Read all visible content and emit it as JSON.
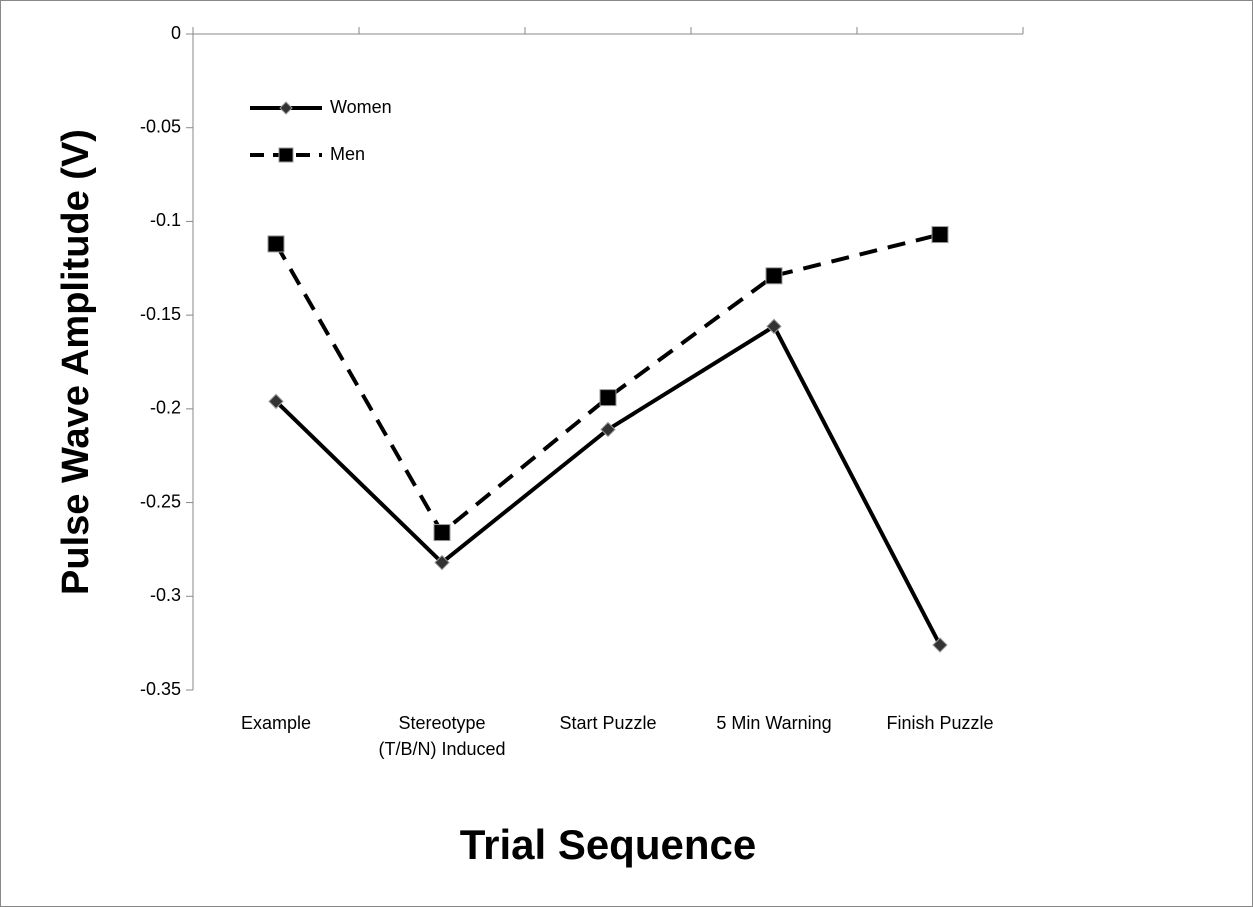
{
  "chart_data": {
    "type": "line",
    "x_label": "Trial Sequence",
    "y_label": "Pulse Wave Amplitude (V)",
    "categories": [
      "Example",
      "Stereotype (T/B/N) Induced",
      "Start Puzzle",
      "5 Min Warning",
      "Finish Puzzle"
    ],
    "series": [
      {
        "name": "Women",
        "color": "#000000",
        "dash": "solid",
        "marker": "diamond",
        "values": [
          -0.196,
          -0.282,
          -0.211,
          -0.156,
          -0.326
        ]
      },
      {
        "name": "Men",
        "color": "#000000",
        "dash": "dashed",
        "marker": "square",
        "values": [
          -0.112,
          -0.266,
          -0.194,
          -0.129,
          -0.107
        ]
      }
    ],
    "ylim": [
      -0.35,
      0
    ],
    "yticks": [
      0,
      -0.05,
      -0.1,
      -0.15,
      -0.2,
      -0.25,
      -0.3,
      -0.35
    ],
    "legend": "upper left"
  }
}
